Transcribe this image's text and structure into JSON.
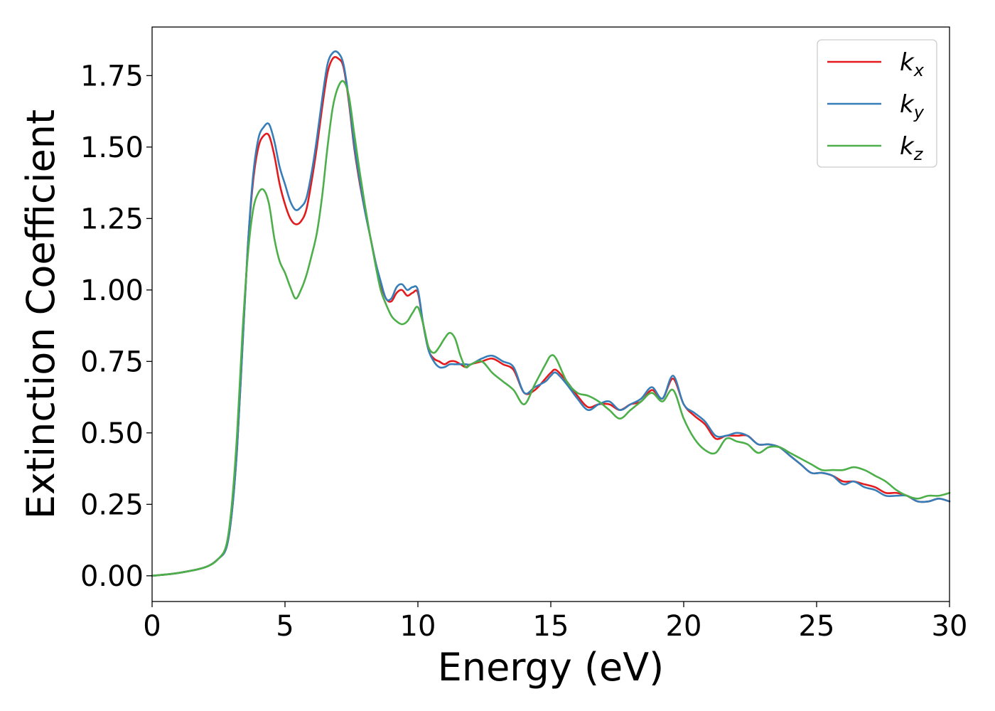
{
  "chart_data": {
    "type": "line",
    "xlabel": "Energy (eV)",
    "ylabel": "Extinction Coefficient",
    "xlim": [
      0,
      30
    ],
    "ylim": [
      -0.09,
      1.92
    ],
    "xticks": [
      "0",
      "5",
      "10",
      "15",
      "20",
      "25",
      "30"
    ],
    "xtick_values": [
      0,
      5,
      10,
      15,
      20,
      25,
      30
    ],
    "yticks": [
      "0.00",
      "0.25",
      "0.50",
      "0.75",
      "1.00",
      "1.25",
      "1.50",
      "1.75"
    ],
    "ytick_values": [
      0,
      0.25,
      0.5,
      0.75,
      1.0,
      1.25,
      1.5,
      1.75
    ],
    "grid": false,
    "legend_position": "top-right",
    "series": [
      {
        "name": "k_x",
        "label_main": "k",
        "label_sub": "x",
        "color": "#e41a1c",
        "x": [
          0,
          1,
          2,
          2.5,
          2.8,
          3.0,
          3.2,
          3.4,
          3.6,
          3.8,
          4.0,
          4.2,
          4.4,
          4.6,
          4.8,
          5.0,
          5.2,
          5.4,
          5.6,
          5.8,
          6.0,
          6.2,
          6.4,
          6.6,
          6.8,
          7.0,
          7.2,
          7.4,
          7.6,
          7.8,
          8.0,
          8.2,
          8.4,
          8.6,
          8.8,
          9.0,
          9.2,
          9.4,
          9.6,
          9.8,
          10.0,
          10.2,
          10.4,
          10.6,
          10.8,
          11.0,
          11.2,
          11.4,
          11.6,
          11.8,
          12.0,
          12.4,
          12.8,
          13.2,
          13.6,
          14.0,
          14.4,
          14.8,
          15.0,
          15.2,
          15.6,
          16.0,
          16.4,
          16.8,
          17.2,
          17.6,
          18.0,
          18.4,
          18.8,
          19.2,
          19.6,
          20.0,
          20.4,
          20.8,
          21.2,
          21.6,
          22.0,
          22.4,
          22.8,
          23.2,
          23.6,
          24.0,
          24.4,
          24.8,
          25.2,
          25.6,
          26.0,
          26.4,
          26.8,
          27.2,
          27.6,
          28.0,
          28.4,
          28.8,
          29.2,
          29.6,
          30.0
        ],
        "y": [
          0.0,
          0.01,
          0.03,
          0.06,
          0.1,
          0.22,
          0.45,
          0.8,
          1.15,
          1.38,
          1.5,
          1.54,
          1.54,
          1.47,
          1.37,
          1.3,
          1.25,
          1.23,
          1.24,
          1.28,
          1.38,
          1.5,
          1.64,
          1.76,
          1.81,
          1.81,
          1.78,
          1.66,
          1.5,
          1.38,
          1.28,
          1.19,
          1.1,
          1.02,
          0.97,
          0.96,
          0.99,
          1.0,
          0.98,
          0.99,
          0.99,
          0.88,
          0.79,
          0.76,
          0.75,
          0.74,
          0.75,
          0.75,
          0.74,
          0.73,
          0.74,
          0.75,
          0.76,
          0.74,
          0.72,
          0.64,
          0.65,
          0.69,
          0.71,
          0.72,
          0.68,
          0.63,
          0.59,
          0.6,
          0.6,
          0.58,
          0.6,
          0.61,
          0.65,
          0.62,
          0.69,
          0.6,
          0.56,
          0.53,
          0.48,
          0.49,
          0.49,
          0.49,
          0.46,
          0.46,
          0.45,
          0.42,
          0.39,
          0.36,
          0.36,
          0.35,
          0.33,
          0.33,
          0.32,
          0.31,
          0.29,
          0.29,
          0.28,
          0.26,
          0.26,
          0.27,
          0.26
        ]
      },
      {
        "name": "k_y",
        "label_main": "k",
        "label_sub": "y",
        "color": "#377eb8",
        "x": [
          0,
          1,
          2,
          2.5,
          2.8,
          3.0,
          3.2,
          3.4,
          3.6,
          3.8,
          4.0,
          4.2,
          4.4,
          4.6,
          4.8,
          5.0,
          5.2,
          5.4,
          5.6,
          5.8,
          6.0,
          6.2,
          6.4,
          6.6,
          6.8,
          7.0,
          7.2,
          7.4,
          7.6,
          7.8,
          8.0,
          8.2,
          8.4,
          8.6,
          8.8,
          9.0,
          9.2,
          9.4,
          9.6,
          9.8,
          10.0,
          10.2,
          10.4,
          10.6,
          10.8,
          11.0,
          11.2,
          11.4,
          11.6,
          11.8,
          12.0,
          12.4,
          12.8,
          13.2,
          13.6,
          14.0,
          14.4,
          14.8,
          15.0,
          15.2,
          15.6,
          16.0,
          16.4,
          16.8,
          17.2,
          17.6,
          18.0,
          18.4,
          18.8,
          19.2,
          19.6,
          20.0,
          20.4,
          20.8,
          21.2,
          21.6,
          22.0,
          22.4,
          22.8,
          23.2,
          23.6,
          24.0,
          24.4,
          24.8,
          25.2,
          25.6,
          26.0,
          26.4,
          26.8,
          27.2,
          27.6,
          28.0,
          28.4,
          28.8,
          29.2,
          29.6,
          30.0
        ],
        "y": [
          0.0,
          0.01,
          0.03,
          0.06,
          0.1,
          0.22,
          0.45,
          0.8,
          1.15,
          1.4,
          1.53,
          1.57,
          1.58,
          1.52,
          1.43,
          1.37,
          1.31,
          1.28,
          1.29,
          1.32,
          1.41,
          1.53,
          1.67,
          1.79,
          1.83,
          1.83,
          1.79,
          1.67,
          1.51,
          1.39,
          1.28,
          1.19,
          1.1,
          1.03,
          0.97,
          0.97,
          1.01,
          1.02,
          1.0,
          1.01,
          1.0,
          0.88,
          0.79,
          0.75,
          0.73,
          0.73,
          0.74,
          0.74,
          0.74,
          0.74,
          0.74,
          0.76,
          0.77,
          0.75,
          0.73,
          0.64,
          0.66,
          0.68,
          0.7,
          0.71,
          0.67,
          0.62,
          0.58,
          0.6,
          0.61,
          0.58,
          0.6,
          0.62,
          0.66,
          0.62,
          0.7,
          0.6,
          0.57,
          0.54,
          0.49,
          0.49,
          0.5,
          0.49,
          0.46,
          0.46,
          0.45,
          0.42,
          0.39,
          0.36,
          0.36,
          0.35,
          0.32,
          0.33,
          0.31,
          0.3,
          0.28,
          0.28,
          0.28,
          0.26,
          0.26,
          0.27,
          0.26
        ]
      },
      {
        "name": "k_z",
        "label_main": "k",
        "label_sub": "z",
        "color": "#4daf4a",
        "x": [
          0,
          1,
          2,
          2.5,
          2.8,
          3.0,
          3.2,
          3.4,
          3.6,
          3.8,
          4.0,
          4.2,
          4.4,
          4.6,
          4.8,
          5.0,
          5.2,
          5.4,
          5.6,
          5.8,
          6.0,
          6.2,
          6.4,
          6.6,
          6.8,
          7.0,
          7.2,
          7.4,
          7.6,
          7.8,
          8.0,
          8.2,
          8.4,
          8.6,
          8.8,
          9.0,
          9.2,
          9.4,
          9.6,
          9.8,
          10.0,
          10.2,
          10.4,
          10.6,
          10.8,
          11.0,
          11.2,
          11.4,
          11.6,
          11.8,
          12.0,
          12.4,
          12.8,
          13.2,
          13.6,
          14.0,
          14.4,
          14.8,
          15.0,
          15.2,
          15.6,
          16.0,
          16.4,
          16.8,
          17.2,
          17.6,
          18.0,
          18.4,
          18.8,
          19.2,
          19.6,
          20.0,
          20.4,
          20.8,
          21.2,
          21.6,
          22.0,
          22.4,
          22.8,
          23.2,
          23.6,
          24.0,
          24.4,
          24.8,
          25.2,
          25.6,
          26.0,
          26.4,
          26.8,
          27.2,
          27.6,
          28.0,
          28.4,
          28.8,
          29.2,
          29.6,
          30.0
        ],
        "y": [
          0.0,
          0.01,
          0.03,
          0.06,
          0.11,
          0.25,
          0.5,
          0.85,
          1.12,
          1.28,
          1.34,
          1.35,
          1.3,
          1.18,
          1.1,
          1.06,
          1.01,
          0.97,
          1.0,
          1.05,
          1.12,
          1.2,
          1.33,
          1.5,
          1.64,
          1.71,
          1.73,
          1.68,
          1.55,
          1.42,
          1.3,
          1.19,
          1.09,
          1.0,
          0.95,
          0.91,
          0.89,
          0.88,
          0.89,
          0.92,
          0.94,
          0.88,
          0.8,
          0.78,
          0.8,
          0.83,
          0.85,
          0.83,
          0.77,
          0.73,
          0.74,
          0.75,
          0.71,
          0.68,
          0.65,
          0.6,
          0.67,
          0.74,
          0.77,
          0.76,
          0.68,
          0.64,
          0.63,
          0.61,
          0.58,
          0.55,
          0.58,
          0.61,
          0.64,
          0.61,
          0.65,
          0.55,
          0.48,
          0.44,
          0.43,
          0.48,
          0.47,
          0.46,
          0.43,
          0.45,
          0.45,
          0.43,
          0.41,
          0.39,
          0.37,
          0.37,
          0.37,
          0.38,
          0.37,
          0.35,
          0.33,
          0.3,
          0.28,
          0.27,
          0.28,
          0.28,
          0.29
        ]
      }
    ]
  }
}
